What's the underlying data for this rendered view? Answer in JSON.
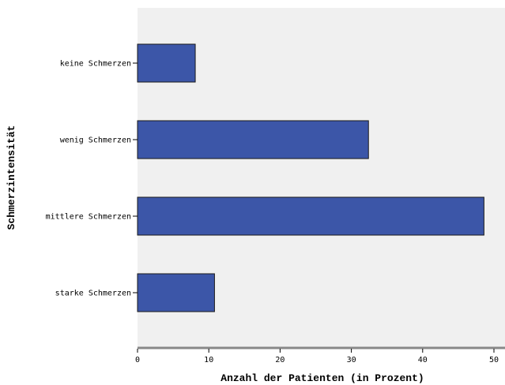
{
  "chart_data": {
    "type": "bar",
    "orientation": "horizontal",
    "title": "",
    "xlabel": "Anzahl der Patienten (in Prozent)",
    "ylabel": "Schmerzintensität",
    "categories": [
      "keine Schmerzen",
      "wenig Schmerzen",
      "mittlere Schmerzen",
      "starke Schmerzen"
    ],
    "values": [
      8.1,
      32.4,
      48.6,
      10.8
    ],
    "xlim": [
      0,
      52
    ],
    "xticks": [
      "0",
      "10",
      "20",
      "30",
      "40",
      "50"
    ],
    "grid": false,
    "legend": "none",
    "colors": {
      "bar_fill": "#3c56a8",
      "bar_stroke": "#1a1a1a",
      "plot_background": "#f0f0f0",
      "axis_line": "#888888"
    }
  }
}
